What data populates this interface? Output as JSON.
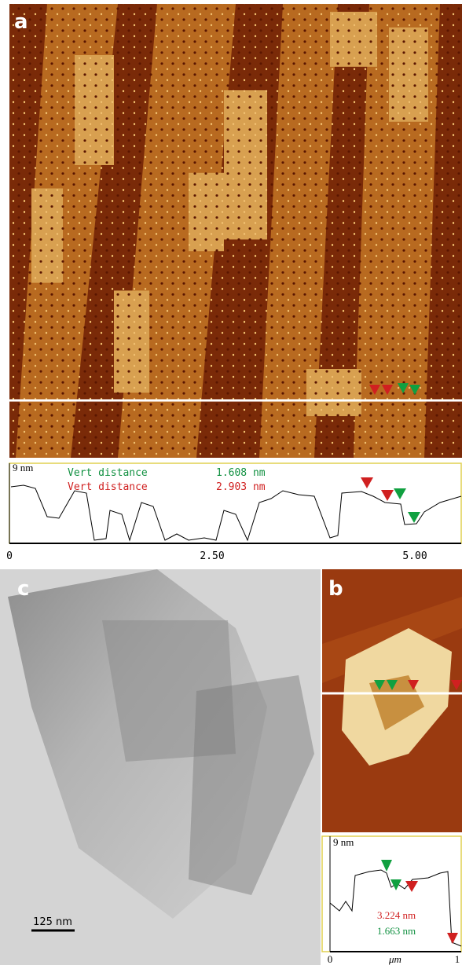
{
  "panels": {
    "a": {
      "label": "a",
      "profile": {
        "y_label": "9 nm",
        "measurements": [
          {
            "name": "Vert distance",
            "value": "1.608 nm"
          },
          {
            "name": "Vert distance",
            "value": "2.903 nm"
          }
        ],
        "x_ticks": [
          "0",
          "2.50",
          "5.00"
        ]
      }
    },
    "c": {
      "label": "c",
      "scale_bar": "125 nm"
    },
    "b": {
      "label": "b",
      "profile": {
        "y_label": "9 nm",
        "measurements": [
          "3.224 nm",
          "1.663 nm"
        ],
        "x_ticks": [
          "0",
          "μm",
          "1"
        ]
      }
    }
  }
}
